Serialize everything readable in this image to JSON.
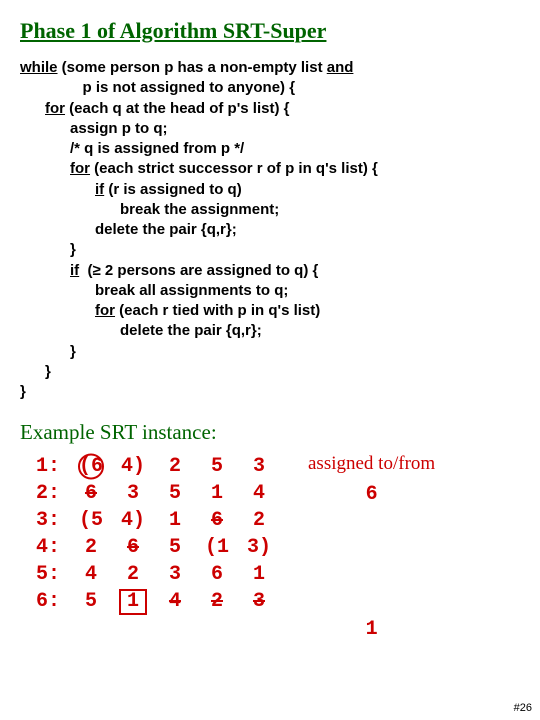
{
  "title": "Phase 1 of Algorithm SRT-Super",
  "pseudocode_lines": [
    {
      "indent": 0,
      "parts": [
        {
          "t": "while",
          "kw": true
        },
        {
          "t": " (some person p has a non-empty list "
        },
        {
          "t": "and",
          "kw": true
        }
      ]
    },
    {
      "indent": 5,
      "parts": [
        {
          "t": "p is not assigned to anyone) {"
        }
      ]
    },
    {
      "indent": 2,
      "parts": [
        {
          "t": "for",
          "kw": true
        },
        {
          "t": " (each q at the head of p's list) {"
        }
      ]
    },
    {
      "indent": 4,
      "parts": [
        {
          "t": "assign p to q;"
        }
      ]
    },
    {
      "indent": 4,
      "parts": [
        {
          "t": "/* q is assigned from p */"
        }
      ]
    },
    {
      "indent": 4,
      "parts": [
        {
          "t": "for",
          "kw": true
        },
        {
          "t": " (each strict successor r of p in q's list) {"
        }
      ]
    },
    {
      "indent": 6,
      "parts": [
        {
          "t": "if",
          "kw": true
        },
        {
          "t": " (r is assigned to q)"
        }
      ]
    },
    {
      "indent": 8,
      "parts": [
        {
          "t": "break the assignment;"
        }
      ]
    },
    {
      "indent": 6,
      "parts": [
        {
          "t": "delete the pair {q,r};"
        }
      ]
    },
    {
      "indent": 4,
      "parts": [
        {
          "t": "}"
        }
      ]
    },
    {
      "indent": 4,
      "parts": [
        {
          "t": "if",
          "kw": true
        },
        {
          "t": "  ("
        },
        {
          "t": "≥",
          "sym": true
        },
        {
          "t": " 2 persons are assigned to q) {"
        }
      ]
    },
    {
      "indent": 6,
      "parts": [
        {
          "t": "break all assignments to q;"
        }
      ]
    },
    {
      "indent": 6,
      "parts": [
        {
          "t": "for",
          "kw": true
        },
        {
          "t": " (each r tied with p in q's list)"
        }
      ]
    },
    {
      "indent": 8,
      "parts": [
        {
          "t": "delete the pair {q,r};"
        }
      ]
    },
    {
      "indent": 4,
      "parts": [
        {
          "t": "}"
        }
      ]
    },
    {
      "indent": 2,
      "parts": [
        {
          "t": "}"
        }
      ]
    },
    {
      "indent": 0,
      "parts": [
        {
          "t": "}"
        }
      ]
    }
  ],
  "example_title": "Example SRT instance:",
  "pref_rows": [
    {
      "label": "1:",
      "cells": [
        {
          "v": "(6",
          "mark": "circled"
        },
        {
          "v": "4)"
        },
        {
          "v": "2"
        },
        {
          "v": "5"
        },
        {
          "v": "3"
        }
      ]
    },
    {
      "label": "2:",
      "cells": [
        {
          "v": "6",
          "mark": "struck"
        },
        {
          "v": "3"
        },
        {
          "v": "5"
        },
        {
          "v": "1"
        },
        {
          "v": "4"
        }
      ]
    },
    {
      "label": "3:",
      "cells": [
        {
          "v": "(5"
        },
        {
          "v": "4)"
        },
        {
          "v": "1"
        },
        {
          "v": "6",
          "mark": "struck"
        },
        {
          "v": "2"
        }
      ]
    },
    {
      "label": "4:",
      "cells": [
        {
          "v": "2"
        },
        {
          "v": "6",
          "mark": "struck"
        },
        {
          "v": "5"
        },
        {
          "v": "(1"
        },
        {
          "v": "3)"
        }
      ]
    },
    {
      "label": "5:",
      "cells": [
        {
          "v": "4"
        },
        {
          "v": "2"
        },
        {
          "v": "3"
        },
        {
          "v": "6"
        },
        {
          "v": "1"
        }
      ]
    },
    {
      "label": "6:",
      "cells": [
        {
          "v": "5"
        },
        {
          "v": "1",
          "mark": "boxed"
        },
        {
          "v": "4",
          "mark": "struck"
        },
        {
          "v": "2",
          "mark": "struck"
        },
        {
          "v": "3",
          "mark": "struck"
        }
      ]
    }
  ],
  "assign_header": "assigned to/from",
  "assign_values": [
    "6",
    "",
    "",
    "",
    "",
    "1"
  ],
  "slide_number": "#26",
  "colors": {
    "title": "#006400",
    "code_text": "#000000",
    "table_text": "#cc0000",
    "background": "#ffffff"
  }
}
